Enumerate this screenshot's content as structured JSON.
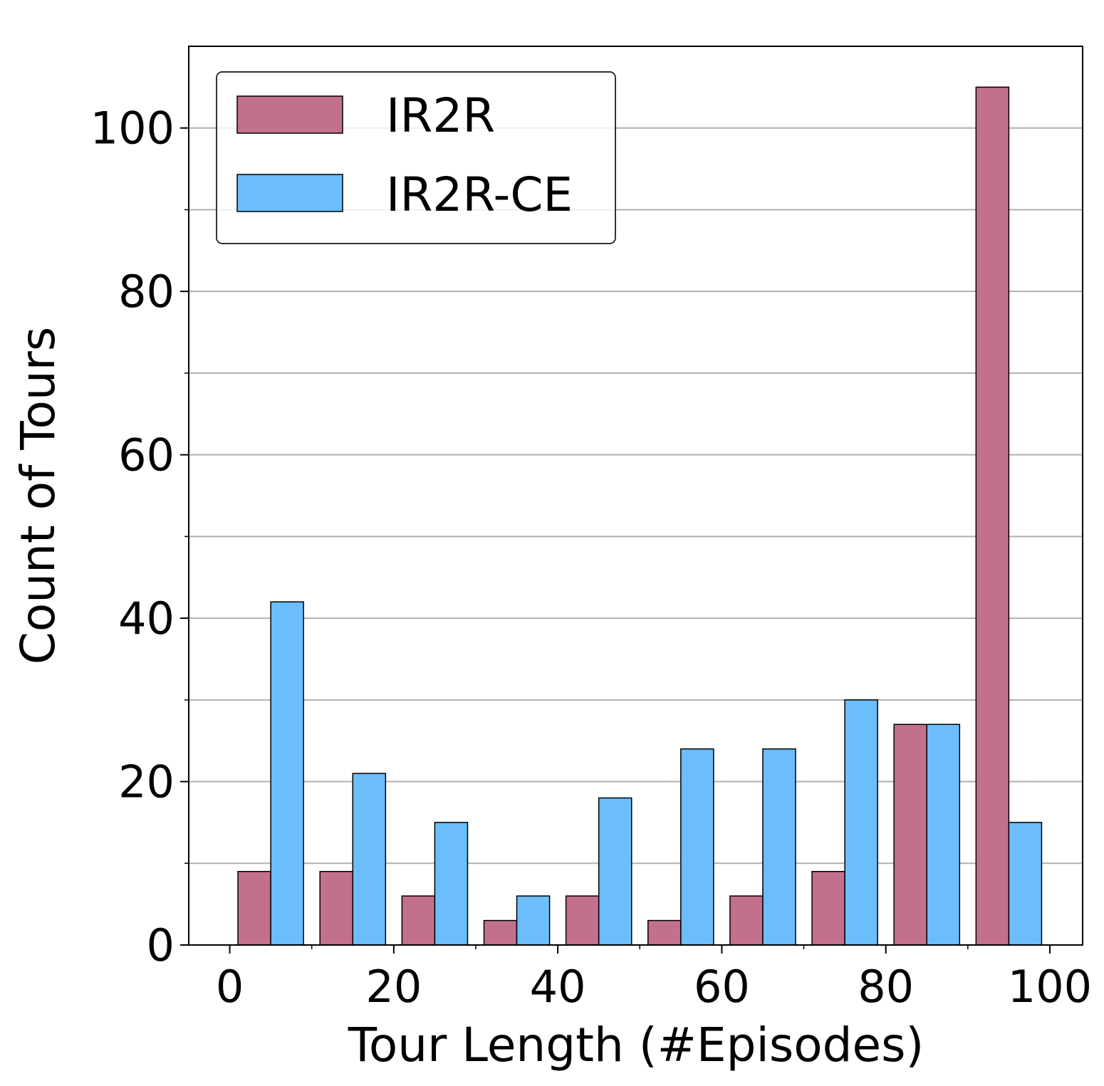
{
  "chart_data": {
    "type": "bar",
    "xlabel": "Tour Length (#Episodes)",
    "ylabel": "Count of Tours",
    "xlim": [
      -5,
      104
    ],
    "ylim": [
      0,
      110
    ],
    "x_ticks": [
      0,
      20,
      40,
      60,
      80,
      100
    ],
    "x_minor_ticks": [
      10,
      30,
      50,
      70,
      90
    ],
    "y_ticks": [
      0,
      20,
      40,
      60,
      80,
      100
    ],
    "y_minor_ticks": [
      10,
      30,
      50,
      70,
      90
    ],
    "grid": "horizontal",
    "legend_position": "top-left",
    "bin_edges": [
      0,
      10,
      20,
      30,
      40,
      50,
      60,
      70,
      80,
      90,
      100
    ],
    "series": [
      {
        "name": "IR2R",
        "color": "#c2708e",
        "values": [
          9,
          9,
          6,
          3,
          6,
          3,
          6,
          9,
          27,
          105
        ]
      },
      {
        "name": "IR2R-CE",
        "color": "#6bbdfc",
        "values": [
          42,
          21,
          15,
          6,
          18,
          24,
          24,
          30,
          27,
          15
        ]
      }
    ]
  }
}
